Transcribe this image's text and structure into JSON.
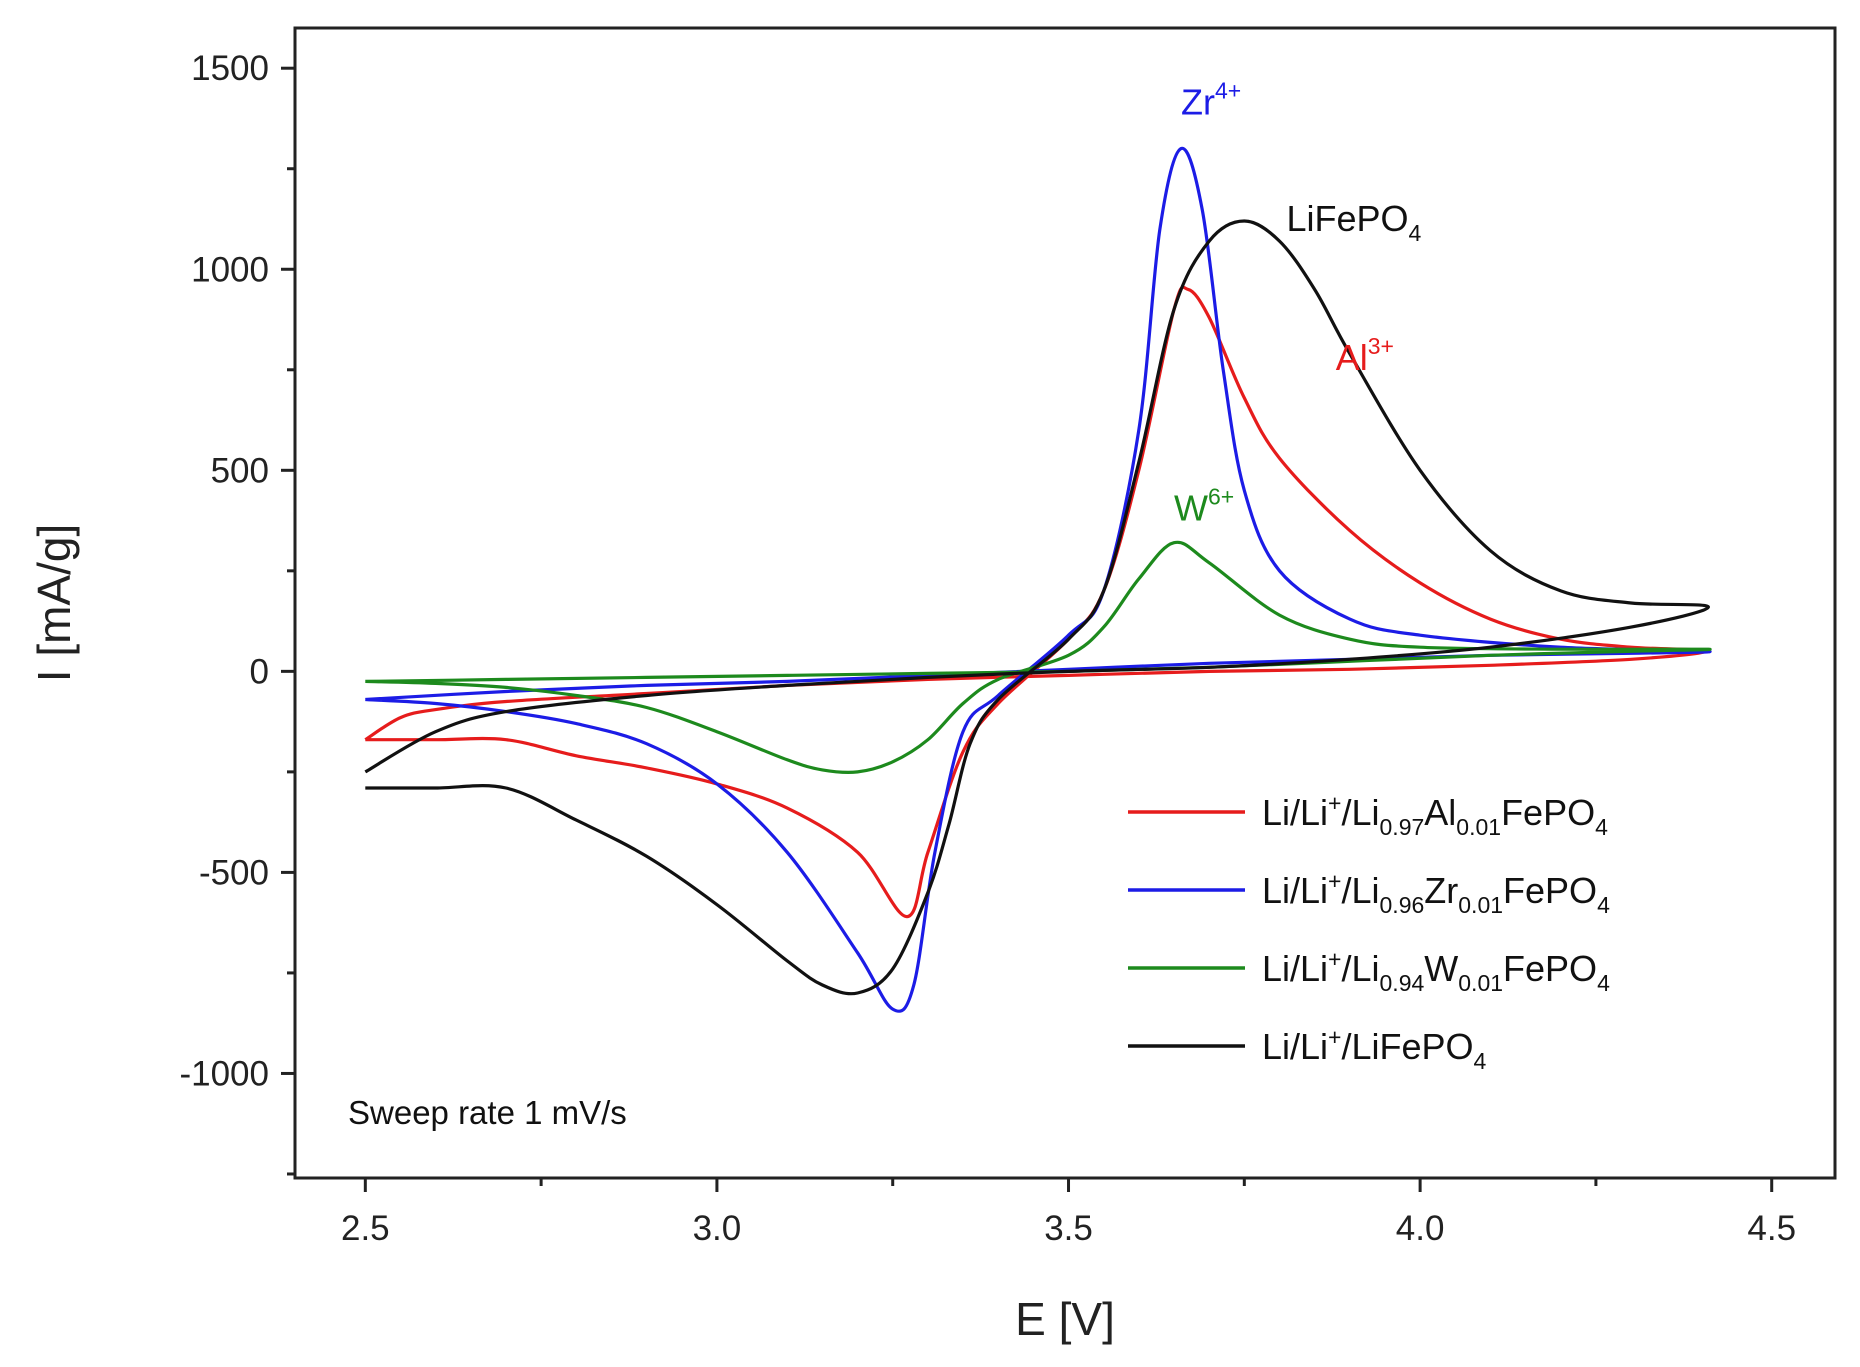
{
  "chart_data": {
    "type": "line",
    "xlabel": "E [V]",
    "ylabel": "I [mA/g]",
    "xlim": [
      2.4,
      4.59
    ],
    "ylim": [
      -1260,
      1600
    ],
    "xticks": [
      2.5,
      3.0,
      3.5,
      4.0,
      4.5
    ],
    "xtick_labels": [
      "2.5",
      "3.0",
      "3.5",
      "4.0",
      "4.5"
    ],
    "yticks": [
      1500,
      1000,
      500,
      0,
      -500,
      -1000
    ],
    "ytick_labels": [
      "1500",
      "1000",
      "500",
      "0",
      "-500",
      "-1000"
    ],
    "annotation_sweep": "Sweep rate 1 mV/s",
    "peak_labels": [
      {
        "base": "Zr",
        "sup": "4+",
        "sub": "",
        "color": "#1c1ce6",
        "x": 3.66,
        "y": 1385
      },
      {
        "base": "LiFePO",
        "sup": "",
        "sub": "4",
        "color": "#111111",
        "x": 3.81,
        "y": 1095
      },
      {
        "base": "Al",
        "sup": "3+",
        "sub": "",
        "color": "#e61c1c",
        "x": 3.88,
        "y": 750
      },
      {
        "base": "W",
        "sup": "6+",
        "sub": "",
        "color": "#1d8a1d",
        "x": 3.65,
        "y": 375
      }
    ],
    "series": [
      {
        "name": "Li/Li+/Li0.97Al0.01FePO4",
        "color": "#e61c1c",
        "legend": [
          [
            "Li/Li",
            ""
          ],
          [
            "+",
            "sup"
          ],
          [
            "/Li",
            ""
          ],
          [
            "0.97",
            "sub"
          ],
          [
            "Al",
            ""
          ],
          [
            "0.01",
            "sub"
          ],
          [
            "FePO",
            ""
          ],
          [
            "4",
            "sub"
          ]
        ],
        "x": [
          2.5,
          2.6,
          2.7,
          2.8,
          2.9,
          3.0,
          3.1,
          3.2,
          3.27,
          3.3,
          3.35,
          3.4,
          3.5,
          3.55,
          3.6,
          3.65,
          3.67,
          3.7,
          3.75,
          3.8,
          3.9,
          4.0,
          4.1,
          4.2,
          4.3,
          4.41,
          4.3,
          4.1,
          3.9,
          3.7,
          3.5,
          3.3,
          3.1,
          2.9,
          2.7,
          2.6,
          2.55,
          2.5
        ],
        "y": [
          -170,
          -170,
          -170,
          -210,
          -240,
          -280,
          -340,
          -450,
          -610,
          -450,
          -200,
          -80,
          80,
          200,
          500,
          900,
          950,
          880,
          680,
          530,
          350,
          220,
          130,
          80,
          60,
          50,
          30,
          15,
          5,
          0,
          -10,
          -20,
          -35,
          -55,
          -75,
          -95,
          -115,
          -170
        ]
      },
      {
        "name": "Li/Li+/Li0.96Zr0.01FePO4",
        "color": "#1c1ce6",
        "legend": [
          [
            "Li/Li",
            ""
          ],
          [
            "+",
            "sup"
          ],
          [
            "/Li",
            ""
          ],
          [
            "0.96",
            "sub"
          ],
          [
            "Zr",
            ""
          ],
          [
            "0.01",
            "sub"
          ],
          [
            "FePO",
            ""
          ],
          [
            "4",
            "sub"
          ]
        ],
        "x": [
          2.5,
          2.6,
          2.7,
          2.8,
          2.9,
          3.0,
          3.1,
          3.2,
          3.25,
          3.28,
          3.31,
          3.35,
          3.4,
          3.5,
          3.55,
          3.6,
          3.63,
          3.66,
          3.69,
          3.72,
          3.75,
          3.8,
          3.9,
          4.0,
          4.2,
          4.41,
          4.3,
          4.1,
          3.9,
          3.7,
          3.5,
          3.3,
          3.1,
          2.9,
          2.7,
          2.5
        ],
        "y": [
          -70,
          -80,
          -100,
          -130,
          -180,
          -280,
          -450,
          -700,
          -840,
          -780,
          -450,
          -150,
          -60,
          90,
          200,
          600,
          1100,
          1300,
          1150,
          750,
          450,
          250,
          130,
          90,
          60,
          50,
          45,
          40,
          30,
          20,
          5,
          -10,
          -25,
          -35,
          -50,
          -70
        ]
      },
      {
        "name": "Li/Li+/Li0.94W0.01FePO4",
        "color": "#1d8a1d",
        "legend": [
          [
            "Li/Li",
            ""
          ],
          [
            "+",
            "sup"
          ],
          [
            "/Li",
            ""
          ],
          [
            "0.94",
            "sub"
          ],
          [
            "W",
            ""
          ],
          [
            "0.01",
            "sub"
          ],
          [
            "FePO",
            ""
          ],
          [
            "4",
            "sub"
          ]
        ],
        "x": [
          2.5,
          2.6,
          2.7,
          2.8,
          2.9,
          3.0,
          3.1,
          3.15,
          3.2,
          3.25,
          3.3,
          3.35,
          3.4,
          3.5,
          3.55,
          3.6,
          3.65,
          3.7,
          3.8,
          3.9,
          4.0,
          4.2,
          4.41,
          4.3,
          4.1,
          3.9,
          3.7,
          3.5,
          3.3,
          3.1,
          2.9,
          2.7,
          2.5
        ],
        "y": [
          -25,
          -30,
          -40,
          -60,
          -90,
          -150,
          -220,
          -245,
          -250,
          -225,
          -170,
          -80,
          -20,
          40,
          110,
          230,
          320,
          270,
          140,
          80,
          60,
          55,
          55,
          50,
          40,
          25,
          10,
          0,
          -5,
          -10,
          -15,
          -20,
          -25
        ]
      },
      {
        "name": "Li/Li+/LiFePO4",
        "color": "#111111",
        "legend": [
          [
            "Li/Li",
            ""
          ],
          [
            "+",
            "sup"
          ],
          [
            "/LiFePO",
            ""
          ],
          [
            "4",
            "sub"
          ]
        ],
        "x": [
          2.5,
          2.6,
          2.7,
          2.8,
          2.9,
          3.0,
          3.1,
          3.15,
          3.2,
          3.25,
          3.3,
          3.33,
          3.36,
          3.4,
          3.5,
          3.55,
          3.6,
          3.65,
          3.7,
          3.75,
          3.8,
          3.85,
          3.9,
          4.0,
          4.1,
          4.2,
          4.3,
          4.41,
          4.3,
          4.1,
          3.9,
          3.7,
          3.5,
          3.3,
          3.1,
          2.9,
          2.7,
          2.6,
          2.5
        ],
        "y": [
          -290,
          -290,
          -290,
          -370,
          -460,
          -580,
          -720,
          -780,
          -800,
          -740,
          -550,
          -380,
          -180,
          -70,
          80,
          200,
          520,
          900,
          1070,
          1120,
          1070,
          950,
          790,
          500,
          300,
          200,
          170,
          160,
          110,
          60,
          30,
          10,
          0,
          -15,
          -35,
          -60,
          -100,
          -150,
          -250
        ]
      }
    ]
  }
}
